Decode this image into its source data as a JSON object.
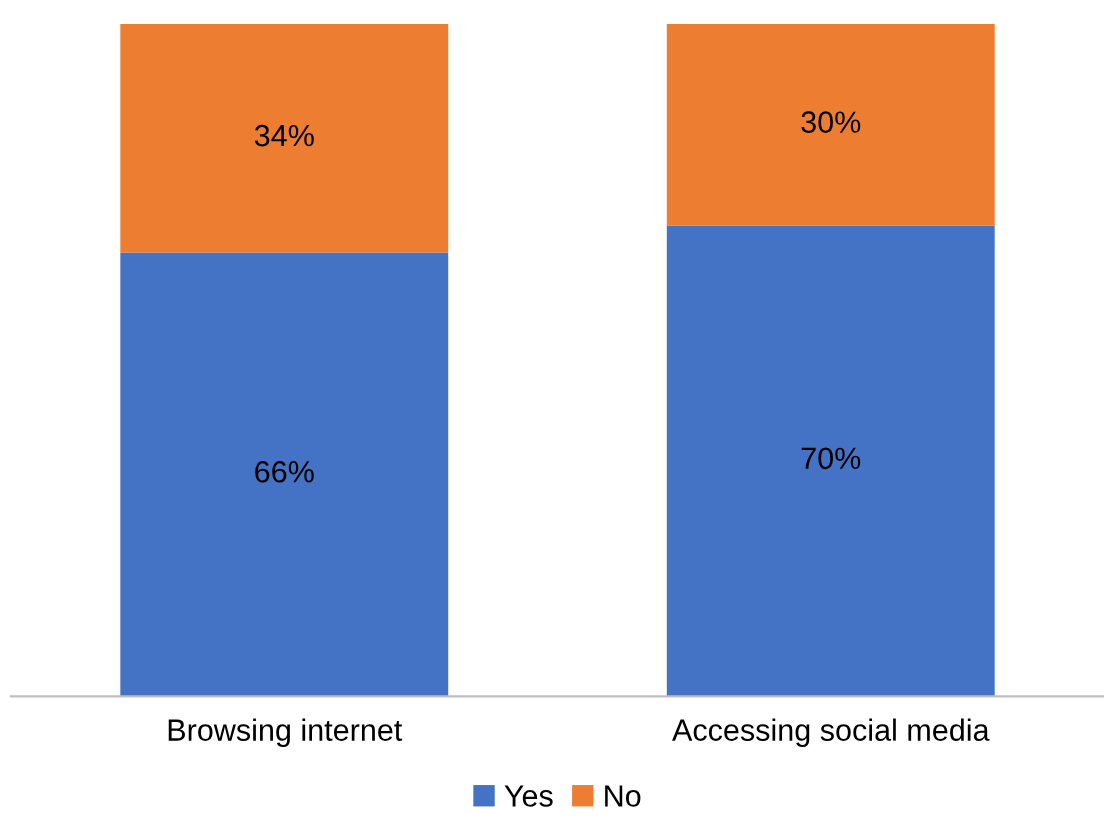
{
  "chart_data": {
    "type": "bar",
    "stacked": true,
    "categories": [
      "Browsing internet",
      "Accessing social media"
    ],
    "series": [
      {
        "name": "Yes",
        "color": "#4472c4",
        "values": [
          66,
          70
        ],
        "value_labels": [
          "66%",
          "70%"
        ]
      },
      {
        "name": "No",
        "color": "#ed7d31",
        "values": [
          34,
          30
        ],
        "value_labels": [
          "34%",
          "30%"
        ]
      }
    ],
    "ylim": [
      0,
      100
    ],
    "tick_labels": "x",
    "grid": false,
    "legend": "bottom"
  }
}
